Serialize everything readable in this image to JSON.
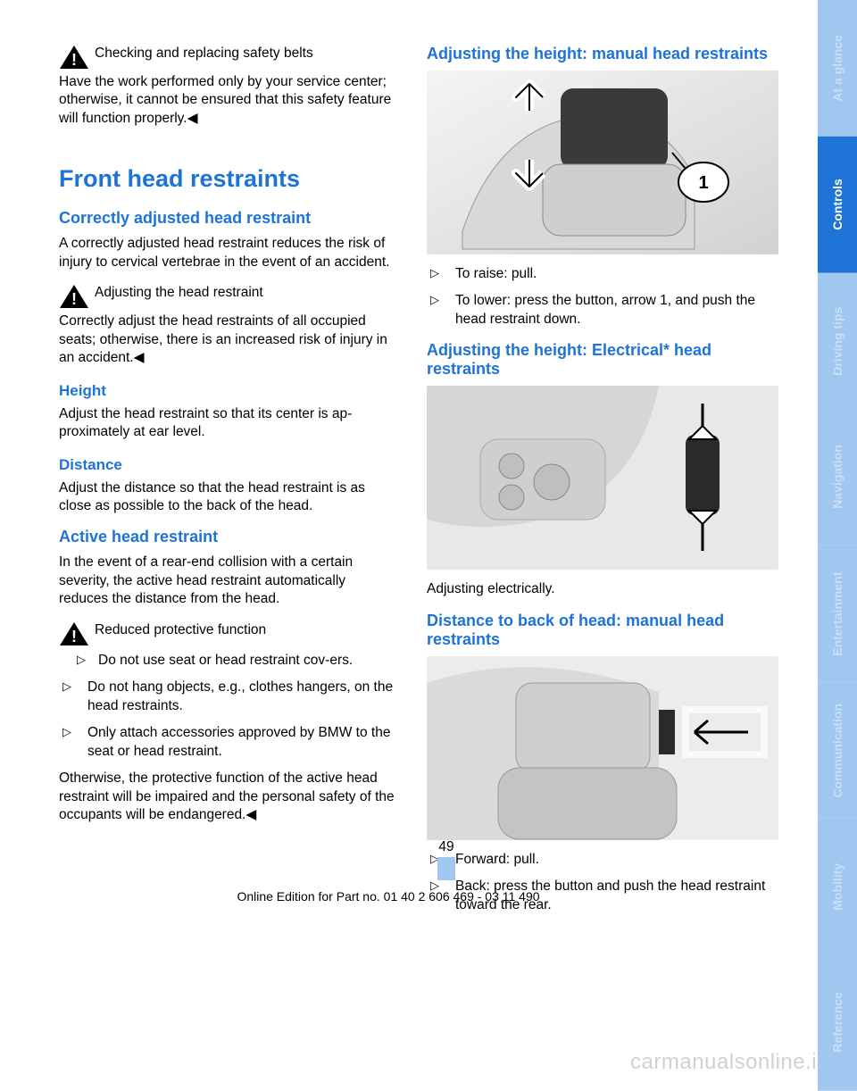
{
  "colors": {
    "heading": "#1e73d6",
    "tab_active_bg": "#1e73d6",
    "tab_dim_bg": "#9fc7f0",
    "tab_dim_fg": "#c9dff5",
    "text": "#000000"
  },
  "left": {
    "warn1_title": "Checking and replacing safety belts",
    "warn1_body": "Have the work performed only by your service center; otherwise, it cannot be ensured that this safety feature will function properly.◀",
    "h1": "Front head restraints",
    "h2a": "Correctly adjusted head restraint",
    "p1": "A correctly adjusted head restraint reduces the risk of injury to cervical vertebrae in the event of an accident.",
    "warn2_title": "Adjusting the head restraint",
    "warn2_body": "Correctly adjust the head restraints of all occupied seats; otherwise, there is an increased risk of injury in an accident.◀",
    "h3_height": "Height",
    "p_height": "Adjust the head restraint so that its center is ap‐proximately at ear level.",
    "h3_distance": "Distance",
    "p_distance": "Adjust the distance so that the head restraint is as close as possible to the back of the head.",
    "h2b": "Active head restraint",
    "p_active": "In the event of a rear-end collision with a certain severity, the active head restraint automatically reduces the distance from the head.",
    "warn3_title": "Reduced protective function",
    "warn3_b1": "Do not use seat or head restraint cov‐ers.",
    "b2": "Do not hang objects, e.g., clothes hangers, on the head restraints.",
    "b3": "Only attach accessories approved by BMW to the seat or head restraint.",
    "p_otherwise": "Otherwise, the protective function of the active head restraint will be impaired and the personal safety of the occupants will be endangered.◀"
  },
  "right": {
    "h2a": "Adjusting the height: manual head restraints",
    "b1": "To raise: pull.",
    "b2": "To lower: press the button, arrow 1, and push the head restraint down.",
    "h2b": "Adjusting the height: Electrical* head restraints",
    "p_elec": "Adjusting electrically.",
    "h2c": "Distance to back of head: manual head restraints",
    "b3": "Forward: pull.",
    "b4": "Back: press the button and push the head restraint toward the rear."
  },
  "page_number": "49",
  "footer": "Online Edition for Part no. 01 40 2 606 469 - 03 11 490",
  "watermark": "carmanualsonline.info",
  "tabs": [
    {
      "label": "At a glance",
      "active": false
    },
    {
      "label": "Controls",
      "active": true
    },
    {
      "label": "Driving tips",
      "active": false
    },
    {
      "label": "Navigation",
      "active": false
    },
    {
      "label": "Entertainment",
      "active": false
    },
    {
      "label": "Communication",
      "active": false
    },
    {
      "label": "Mobility",
      "active": false
    },
    {
      "label": "Reference",
      "active": false
    }
  ]
}
